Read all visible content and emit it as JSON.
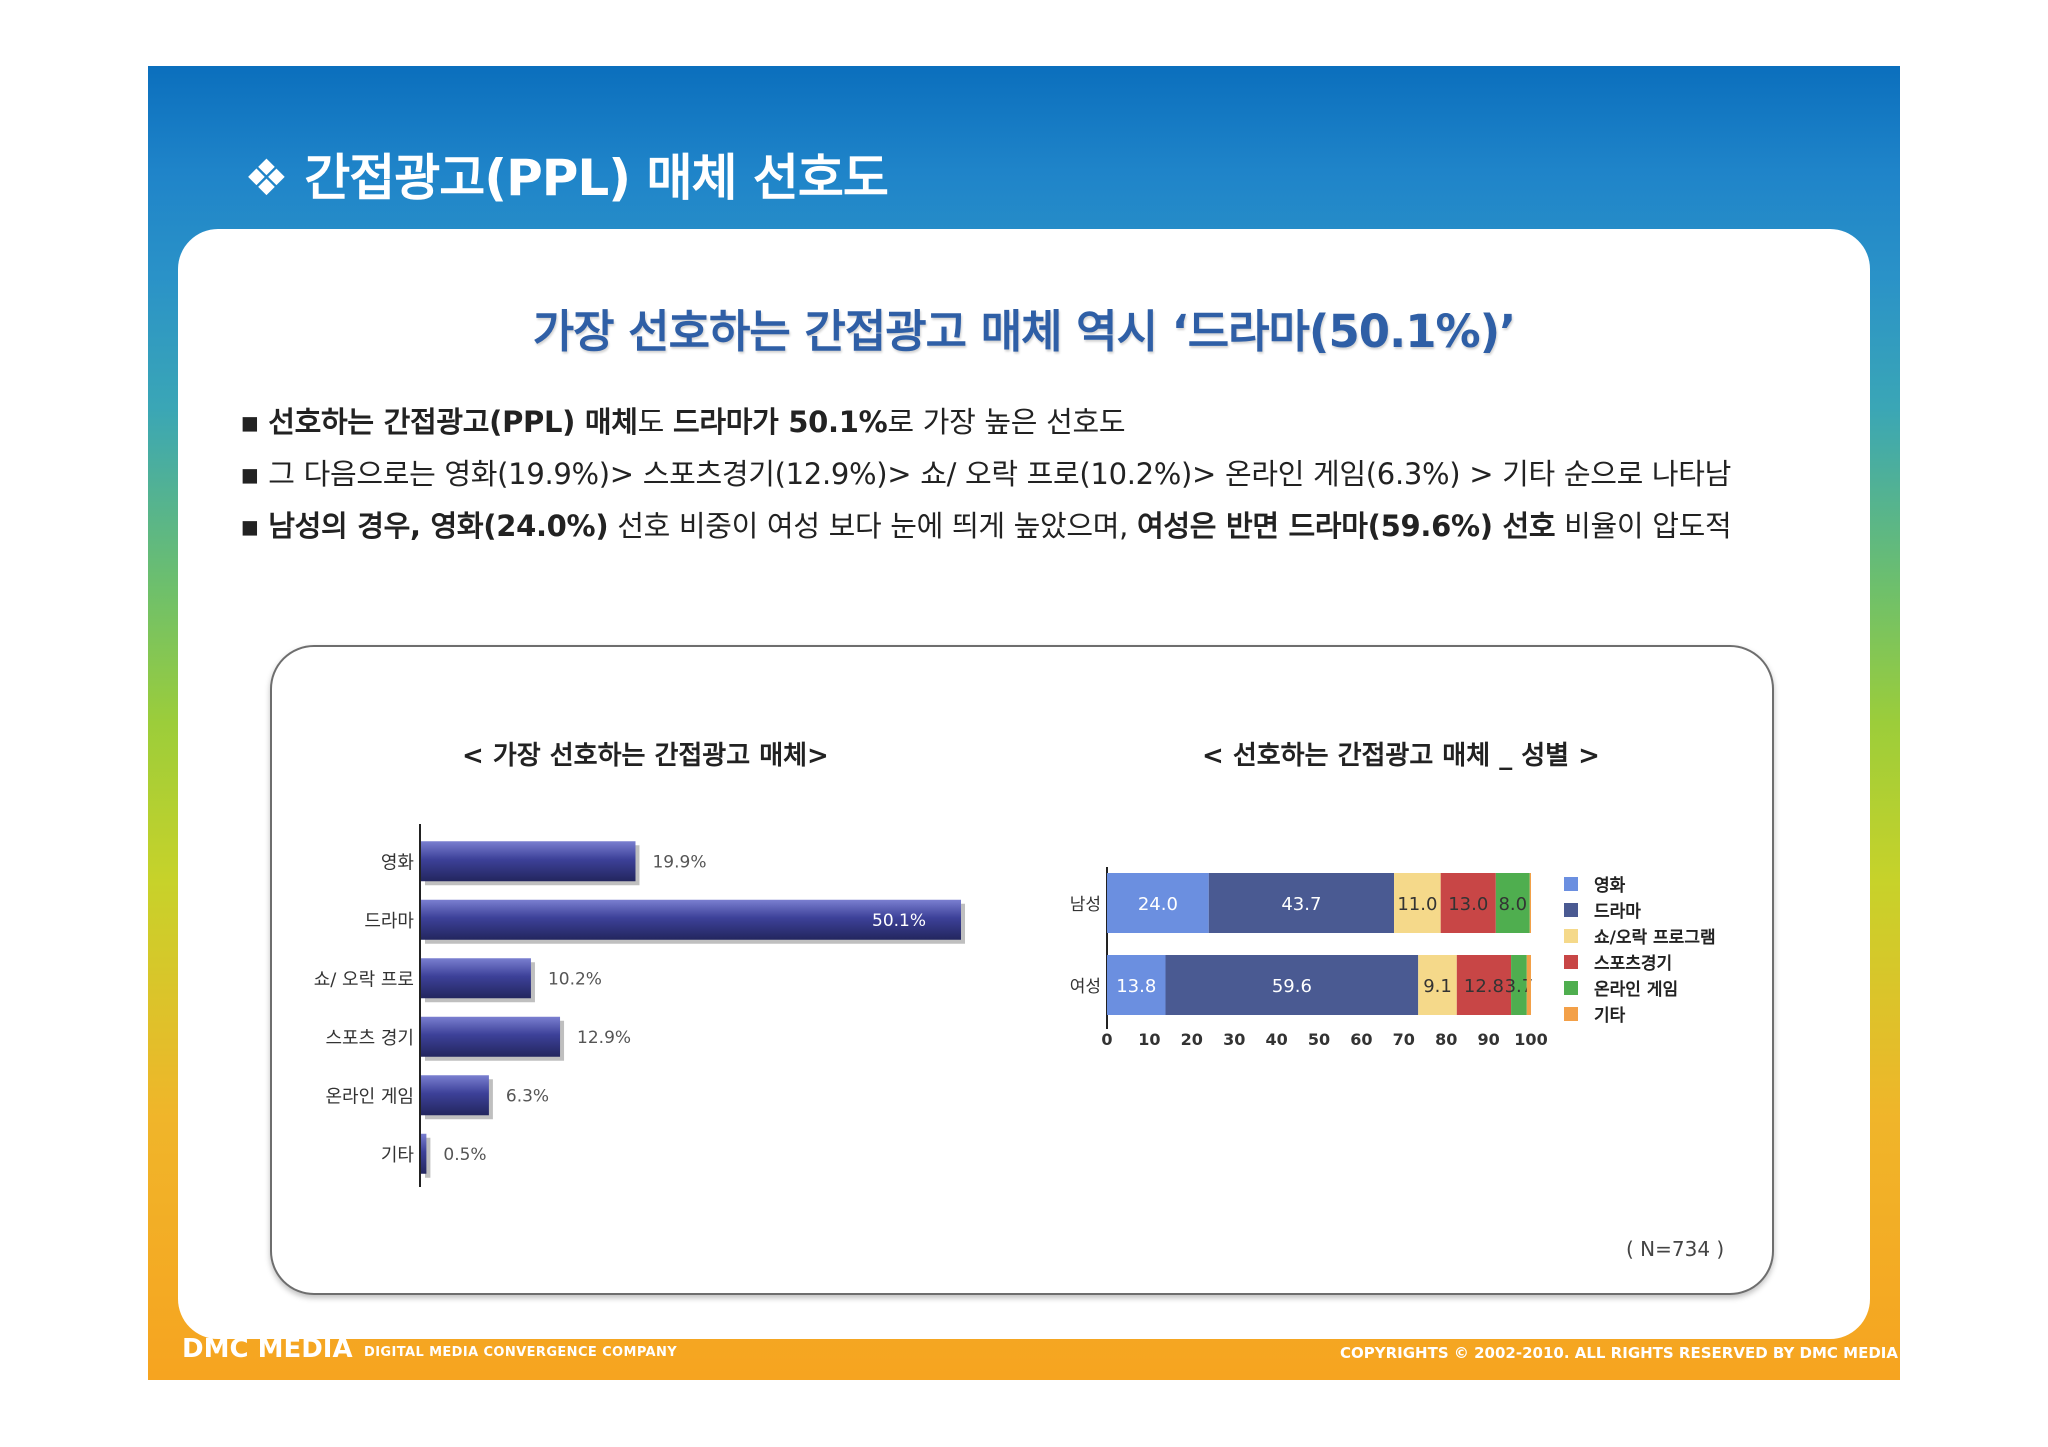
{
  "slide_title": "❖ 간접광고(PPL) 매체 선호도",
  "headline": "가장 선호하는 간접광고 매체 역시 ‘드라마(50.1%)’",
  "bullets": [
    {
      "marker": "▪",
      "parts": [
        {
          "text": "선호하는 간접광고(PPL) 매체",
          "bold": true
        },
        {
          "text": "도 ",
          "bold": false
        },
        {
          "text": "드라마가 50.1%",
          "bold": true
        },
        {
          "text": "로 가장 높은 선호도",
          "bold": false
        }
      ]
    },
    {
      "marker": "▪",
      "parts": [
        {
          "text": "그 다음으로는 영화(19.9%)> 스포츠경기(12.9%)> 쇼/ 오락 프로(10.2%)> 온라인 게임(6.3%) > 기타 순으로 나타남",
          "bold": false
        }
      ]
    },
    {
      "marker": "▪",
      "parts": [
        {
          "text": "남성의 경우, 영화(24.0%)",
          "bold": true
        },
        {
          "text": " 선호 비중이 여성 보다 눈에 띄게 높았으며, ",
          "bold": false
        },
        {
          "text": "여성은 반면 드라마(59.6%) 선호",
          "bold": true
        },
        {
          "text": " 비율이 압도적",
          "bold": false
        }
      ]
    }
  ],
  "chart_data": [
    {
      "type": "bar",
      "orientation": "horizontal",
      "title": "< 가장 선호하는 간접광고 매체>",
      "categories": [
        "영화",
        "드라마",
        "쇼/ 오락 프로",
        "스포츠 경기",
        "온라인 게임",
        "기타"
      ],
      "values": [
        19.9,
        50.1,
        10.2,
        12.9,
        6.3,
        0.5
      ],
      "labels": [
        "19.9%",
        "50.1%",
        "10.2%",
        "12.9%",
        "6.3%",
        "0.5%"
      ],
      "color": "#3a3f9a"
    },
    {
      "type": "bar",
      "orientation": "horizontal",
      "stacked": true,
      "title": "< 선호하는 간접광고 매체 _ 성별 >",
      "categories": [
        "남성",
        "여성"
      ],
      "series": [
        {
          "name": "영화",
          "color": "#6b8fe0",
          "values": [
            24.0,
            13.8
          ]
        },
        {
          "name": "드라마",
          "color": "#4a5a92",
          "values": [
            43.7,
            59.6
          ]
        },
        {
          "name": "쇼/오락 프로그램",
          "color": "#f5d98a",
          "values": [
            11.0,
            9.1
          ]
        },
        {
          "name": "스포츠경기",
          "color": "#c84646",
          "values": [
            13.0,
            12.8
          ]
        },
        {
          "name": "온라인 게임",
          "color": "#4fae4f",
          "values": [
            8.0,
            3.7
          ]
        },
        {
          "name": "기타",
          "color": "#f3a048",
          "values": [
            0.3,
            1.0
          ]
        }
      ],
      "value_labels": [
        [
          "24.0",
          "43.7",
          "11.0",
          "13.0",
          "8.0",
          ""
        ],
        [
          "13.8",
          "59.6",
          "9.1",
          "12.8",
          "3.7",
          ""
        ]
      ],
      "xticks": [
        "0",
        "10",
        "20",
        "30",
        "40",
        "50",
        "60",
        "70",
        "80",
        "90",
        "100"
      ],
      "xlim": [
        0,
        100
      ],
      "legend": "right"
    }
  ],
  "sample_note": "( N=734 )",
  "footer": {
    "logo": "DMC MEDIA",
    "tagline": "DIGITAL MEDIA CONVERGENCE COMPANY",
    "copyright": "COPYRIGHTS © 2002-2010. ALL RIGHTS RESERVED BY DMC MEDIA"
  }
}
